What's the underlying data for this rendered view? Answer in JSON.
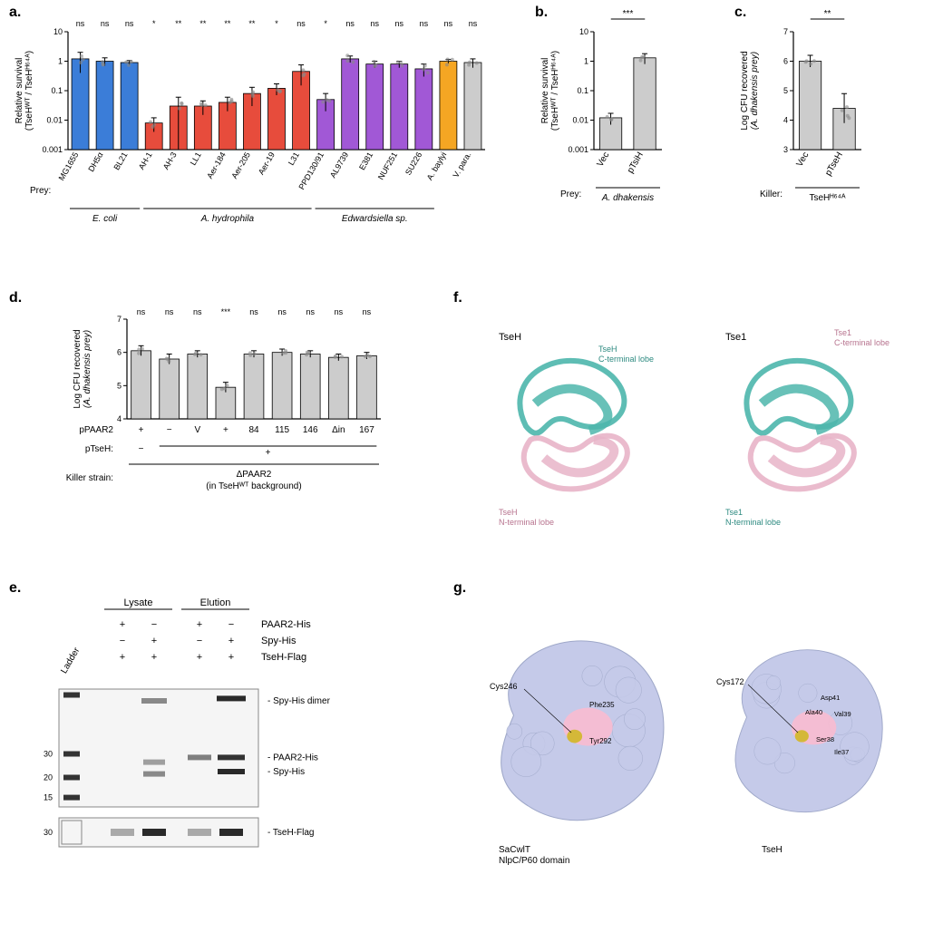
{
  "panel_a": {
    "label": "a.",
    "ylabel": "Relative survival\n(TseHᵂᵀ / TseHᴴ⁶⁴ᴬ)",
    "ylim": [
      0.001,
      10
    ],
    "yticks": [
      0.001,
      0.01,
      0.1,
      1,
      10
    ],
    "categories": [
      "MG1655",
      "DH5α",
      "BL21",
      "AH-1",
      "AH-3",
      "LL1",
      "Aer-184",
      "Aer-205",
      "Aer-19",
      "L31",
      "PPD130/91",
      "AL9739",
      "E381",
      "NUF251",
      "SU226",
      "A. baylyi",
      "V. para."
    ],
    "values": [
      1.2,
      1.0,
      0.9,
      0.008,
      0.03,
      0.03,
      0.04,
      0.08,
      0.12,
      0.45,
      0.05,
      1.2,
      0.8,
      0.8,
      0.55,
      1.0,
      0.9
    ],
    "errors": [
      0.8,
      0.3,
      0.15,
      0.004,
      0.03,
      0.015,
      0.02,
      0.05,
      0.05,
      0.3,
      0.03,
      0.3,
      0.2,
      0.2,
      0.25,
      0.15,
      0.3
    ],
    "colors": [
      "#3b7dd8",
      "#3b7dd8",
      "#3b7dd8",
      "#e74c3c",
      "#e74c3c",
      "#e74c3c",
      "#e74c3c",
      "#e74c3c",
      "#e74c3c",
      "#e74c3c",
      "#a158d6",
      "#a158d6",
      "#a158d6",
      "#a158d6",
      "#a158d6",
      "#f5a623",
      "#cccccc"
    ],
    "sig": [
      "ns",
      "ns",
      "ns",
      "*",
      "**",
      "**",
      "**",
      "**",
      "*",
      "ns",
      "*",
      "ns",
      "ns",
      "ns",
      "ns",
      "ns",
      "ns"
    ],
    "groups": [
      {
        "label": "E. coli",
        "start": 0,
        "end": 2
      },
      {
        "label": "A. hydrophila",
        "start": 3,
        "end": 9
      },
      {
        "label": "Edwardsiella sp.",
        "start": 10,
        "end": 14
      }
    ],
    "prey_label": "Prey:"
  },
  "panel_b": {
    "label": "b.",
    "ylabel": "Relative survival\n(TseHᵂᵀ / TseHᴴ⁶⁴ᴬ)",
    "ylim": [
      0.001,
      10
    ],
    "yticks": [
      0.001,
      0.01,
      0.1,
      1,
      10
    ],
    "categories": [
      "Vec",
      "pTsiH"
    ],
    "values": [
      0.012,
      1.3
    ],
    "errors": [
      0.005,
      0.5
    ],
    "color": "#cccccc",
    "sig": "***",
    "prey_label": "Prey:",
    "prey_value": "A. dhakensis"
  },
  "panel_c": {
    "label": "c.",
    "ylabel": "Log CFU recovered\n(A. dhakensis prey)",
    "ylim": [
      3,
      7
    ],
    "yticks": [
      3,
      4,
      5,
      6,
      7
    ],
    "categories": [
      "Vec",
      "pTseH"
    ],
    "values": [
      6.0,
      4.4
    ],
    "errors": [
      0.2,
      0.5
    ],
    "color": "#cccccc",
    "sig": "**",
    "killer_label": "Killer:",
    "killer_value": "TseHᴴ⁶⁴ᴬ"
  },
  "panel_d": {
    "label": "d.",
    "ylabel": "Log CFU recovered\n(A. dhakensis prey)",
    "ylim": [
      4,
      7
    ],
    "yticks": [
      4,
      5,
      6,
      7
    ],
    "categories": [
      "",
      "",
      "",
      "",
      "",
      "",
      "",
      "",
      ""
    ],
    "values": [
      6.05,
      5.8,
      5.95,
      4.95,
      5.95,
      6.0,
      5.95,
      5.85,
      5.9
    ],
    "errors": [
      0.15,
      0.15,
      0.1,
      0.15,
      0.1,
      0.1,
      0.1,
      0.1,
      0.1
    ],
    "color": "#cccccc",
    "sig": [
      "ns",
      "ns",
      "ns",
      "***",
      "ns",
      "ns",
      "ns",
      "ns",
      "ns"
    ],
    "row_pPAAR2_label": "pPAAR2",
    "row_pPAAR2": [
      "+",
      "−",
      "V",
      "+",
      "84",
      "115",
      "146",
      "Δin",
      "167"
    ],
    "row_pTseH_label": "pTseH:",
    "row_pTseH": [
      "−",
      "",
      "",
      "",
      "",
      "",
      "",
      "",
      ""
    ],
    "pTseH_plus": "+",
    "killer_label": "Killer strain:",
    "killer_value": "ΔPAAR2\n(in TseHᵂᵀ background)"
  },
  "panel_e": {
    "label": "e.",
    "columns_group1": "Lysate",
    "columns_group2": "Elution",
    "row_paar2": "PAAR2-His",
    "row_spy": "Spy-His",
    "row_tseh": "TseH-Flag",
    "band_spy_dimer": "Spy-His dimer",
    "band_paar2": "PAAR2-His",
    "band_spy": "Spy-His",
    "band_tseh": "TseH-Flag",
    "ladder": "Ladder",
    "mw": [
      "30",
      "20",
      "15",
      "30"
    ]
  },
  "panel_f": {
    "label": "f.",
    "left_name": "TseH",
    "left_n": "TseH\nN-terminal lobe",
    "left_c": "TseH\nC-terminal lobe",
    "right_name": "Tse1",
    "right_n": "Tse1\nN-terminal lobe",
    "right_c": "Tse1\nC-terminal lobe",
    "color_n": "#e8b4c8",
    "color_c": "#4db6ac"
  },
  "panel_g": {
    "label": "g.",
    "left_name": "SaCwlT\nNlpC/P60 domain",
    "left_res1": "Cys246",
    "left_res2": "Phe235",
    "left_res3": "Tyr292",
    "right_name": "TseH",
    "right_res": "Cys172",
    "right_res2": "Asp41",
    "right_res3": "Ala40",
    "right_res4": "Val39",
    "right_res5": "Ser38",
    "right_res6": "Ile37",
    "surface_color": "#c5cae9",
    "highlight_color": "#f8bbd0",
    "cys_color": "#d4b838"
  }
}
